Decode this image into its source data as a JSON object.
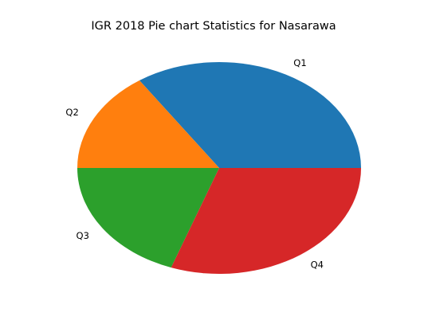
{
  "chart_data": {
    "type": "pie",
    "title": "IGR 2018 Pie chart Statistics for Nasarawa",
    "labels": [
      "Q1",
      "Q2",
      "Q3",
      "Q4"
    ],
    "values": [
      34.5,
      15.5,
      19.5,
      30.5
    ],
    "colors": [
      "#1f77b4",
      "#ff7f0e",
      "#2ca02c",
      "#d62728"
    ],
    "start_angle_deg": 0,
    "direction": "counterclockwise",
    "legend": "none"
  }
}
